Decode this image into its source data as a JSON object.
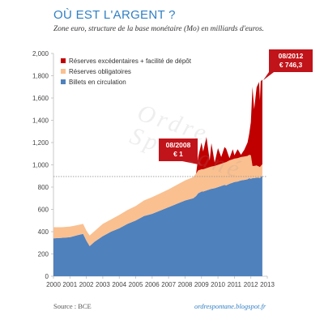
{
  "title": "OÙ EST L'ARGENT ?",
  "subtitle": "Zone euro, structure de la base monétaire (Mo) en milliards d'euros.",
  "source": "Source : BCE",
  "site": "ordrespontane.blogspot.fr",
  "watermark": "Ordre Spontané",
  "colors": {
    "billets": "#4f81bd",
    "reserves_obligatoires": "#fac090",
    "reserves_excedentaires": "#c00000",
    "reference_line": "#999999",
    "callout": "#c0141a"
  },
  "callouts": [
    {
      "label": "08/2008",
      "value": "€ 1"
    },
    {
      "label": "08/2012",
      "value": "€ 746,3"
    }
  ],
  "chart_data": {
    "type": "area",
    "stacked": true,
    "xlim": [
      2000,
      2013
    ],
    "ylim": [
      0,
      2000
    ],
    "x_ticks": [
      "2000",
      "2001",
      "2002",
      "2003",
      "2004",
      "2005",
      "2006",
      "2007",
      "2008",
      "2009",
      "2010",
      "2011",
      "2012",
      "2013"
    ],
    "y_ticks": [
      "0",
      "200",
      "400",
      "600",
      "800",
      "1,000",
      "1,200",
      "1,400",
      "1,600",
      "1,800",
      "2,000"
    ],
    "reference_line": 895,
    "legend_position": "top-left",
    "x": [
      2000.0,
      2000.5,
      2001.0,
      2001.5,
      2001.8,
      2002.0,
      2002.2,
      2002.5,
      2003.0,
      2003.5,
      2004.0,
      2004.5,
      2005.0,
      2005.5,
      2006.0,
      2006.5,
      2007.0,
      2007.5,
      2008.0,
      2008.5,
      2008.67,
      2008.8,
      2009.0,
      2009.1,
      2009.3,
      2009.5,
      2009.6,
      2009.8,
      2010.0,
      2010.2,
      2010.4,
      2010.5,
      2010.7,
      2010.9,
      2011.0,
      2011.2,
      2011.4,
      2011.6,
      2011.8,
      2011.9,
      2012.0,
      2012.1,
      2012.2,
      2012.35,
      2012.5,
      2012.55,
      2012.6,
      2012.7
    ],
    "series": [
      {
        "name": "Billets en circulation",
        "values": [
          340,
          345,
          350,
          370,
          380,
          320,
          270,
          310,
          360,
          400,
          430,
          470,
          500,
          540,
          560,
          590,
          620,
          650,
          680,
          700,
          720,
          745,
          760,
          760,
          770,
          780,
          785,
          790,
          800,
          810,
          820,
          815,
          830,
          840,
          845,
          850,
          860,
          865,
          870,
          880,
          875,
          880,
          880,
          885,
          885,
          880,
          890,
          900
        ]
      },
      {
        "name": "Réserves obligatoires",
        "values": [
          100,
          95,
          95,
          90,
          90,
          90,
          95,
          95,
          110,
          110,
          120,
          125,
          130,
          140,
          150,
          155,
          160,
          170,
          180,
          190,
          200,
          205,
          200,
          200,
          200,
          200,
          200,
          200,
          200,
          200,
          200,
          210,
          210,
          210,
          210,
          210,
          210,
          210,
          210,
          210,
          210,
          110,
          110,
          110,
          100,
          100,
          100,
          105
        ]
      },
      {
        "name": "Réserves excédentaires + facilité de dépôt",
        "values": [
          0,
          0,
          0,
          0,
          0,
          0,
          0,
          0,
          0,
          0,
          0,
          0,
          0,
          0,
          0,
          0,
          0,
          0,
          0,
          0,
          1,
          120,
          240,
          160,
          280,
          60,
          210,
          30,
          150,
          60,
          140,
          120,
          20,
          90,
          30,
          80,
          20,
          60,
          120,
          190,
          300,
          710,
          510,
          700,
          760,
          600,
          760,
          760
        ]
      }
    ]
  }
}
